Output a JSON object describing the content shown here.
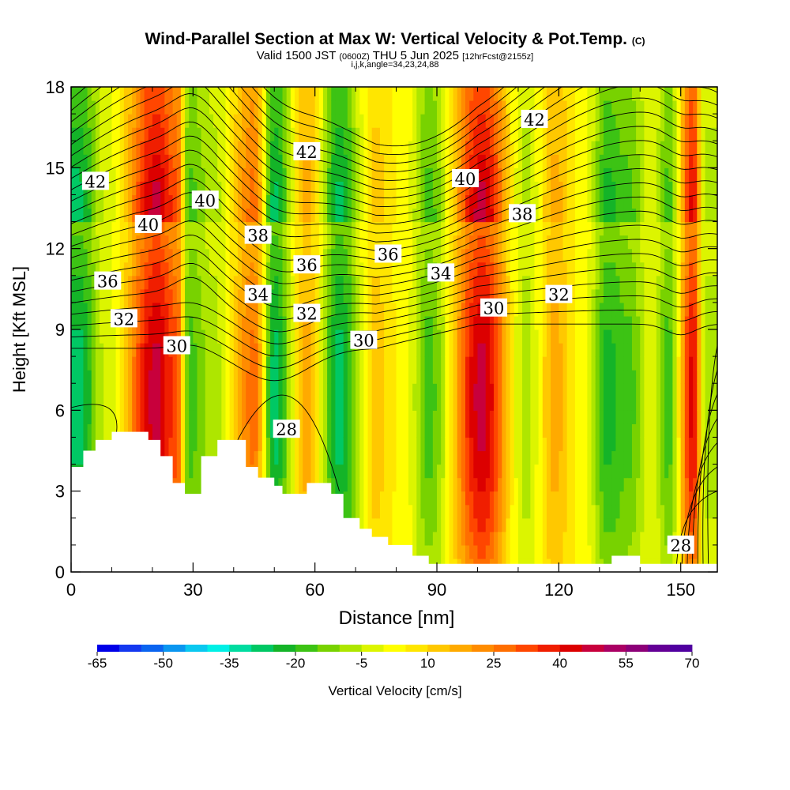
{
  "header": {
    "title": "Wind-Parallel Section at Max W: Vertical Velocity & Pot.Temp.",
    "copyright": "(C)",
    "valid_prefix": "Valid 1500 JST",
    "valid_utc": "(0600Z)",
    "valid_date": "THU 5 Jun 2025",
    "forecast": "[12hrFcst@2155z]",
    "indices": "i,j,k,angle=34,23,24,88"
  },
  "chart_data": {
    "type": "heatmap",
    "xlabel": "Distance [nm]",
    "ylabel": "Height [Kft MSL]",
    "xlim": [
      0,
      159
    ],
    "ylim": [
      0,
      18
    ],
    "xticks": [
      "0",
      "30",
      "60",
      "90",
      "120",
      "150"
    ],
    "yticks": [
      "0",
      "3",
      "6",
      "9",
      "12",
      "15",
      "18"
    ],
    "colorbar": {
      "label": "Vertical Velocity [cm/s]",
      "min": -65,
      "max": 70,
      "step": 5,
      "tick_labels": [
        "-65",
        "-50",
        "-35",
        "-20",
        "-5",
        "10",
        "25",
        "40",
        "55",
        "70"
      ],
      "colors": [
        "#0000e8",
        "#1438f0",
        "#0a64f0",
        "#0a96f0",
        "#0ac8f0",
        "#00f0e6",
        "#00dca0",
        "#00c864",
        "#14b428",
        "#3cc314",
        "#78d200",
        "#aee600",
        "#dcf500",
        "#ffff00",
        "#ffe600",
        "#ffc800",
        "#ffaa00",
        "#ff8c00",
        "#ff6e00",
        "#ff4600",
        "#f01e00",
        "#dc0000",
        "#c8003c",
        "#aa0064",
        "#8c0078",
        "#640096",
        "#5000a0"
      ]
    },
    "velocity_columns": [
      {
        "x": 2,
        "w": -30
      },
      {
        "x": 9,
        "w": -5
      },
      {
        "x": 21,
        "w": 45
      },
      {
        "x": 26,
        "w": 30
      },
      {
        "x": 29,
        "w": -20
      },
      {
        "x": 35,
        "w": -10
      },
      {
        "x": 45,
        "w": 25
      },
      {
        "x": 50,
        "w": -30
      },
      {
        "x": 58,
        "w": 15
      },
      {
        "x": 66,
        "w": -30
      },
      {
        "x": 75,
        "w": 10
      },
      {
        "x": 82,
        "w": 0
      },
      {
        "x": 88,
        "w": -20
      },
      {
        "x": 101,
        "w": 45
      },
      {
        "x": 112,
        "w": -10
      },
      {
        "x": 119,
        "w": 15
      },
      {
        "x": 126,
        "w": 0
      },
      {
        "x": 132,
        "w": -25
      },
      {
        "x": 137,
        "w": -20
      },
      {
        "x": 143,
        "w": -5
      },
      {
        "x": 147,
        "w": -20
      },
      {
        "x": 153,
        "w": 40
      },
      {
        "x": 156,
        "w": -10
      }
    ],
    "theta_contour_labels": [
      {
        "value": "42",
        "x": 6,
        "y": 14.5
      },
      {
        "value": "42",
        "x": 58,
        "y": 15.6
      },
      {
        "value": "42",
        "x": 114,
        "y": 16.8
      },
      {
        "value": "40",
        "x": 19,
        "y": 12.9
      },
      {
        "value": "40",
        "x": 33,
        "y": 13.8
      },
      {
        "value": "40",
        "x": 97,
        "y": 14.6
      },
      {
        "value": "38",
        "x": 46,
        "y": 12.5
      },
      {
        "value": "38",
        "x": 111,
        "y": 13.3
      },
      {
        "value": "36",
        "x": 9,
        "y": 10.8
      },
      {
        "value": "36",
        "x": 58,
        "y": 11.4
      },
      {
        "value": "36",
        "x": 78,
        "y": 11.8
      },
      {
        "value": "34",
        "x": 46,
        "y": 10.3
      },
      {
        "value": "34",
        "x": 91,
        "y": 11.1
      },
      {
        "value": "32",
        "x": 13,
        "y": 9.4
      },
      {
        "value": "32",
        "x": 58,
        "y": 9.6
      },
      {
        "value": "32",
        "x": 120,
        "y": 10.3
      },
      {
        "value": "30",
        "x": 26,
        "y": 8.4
      },
      {
        "value": "30",
        "x": 72,
        "y": 8.6
      },
      {
        "value": "30",
        "x": 104,
        "y": 9.8
      },
      {
        "value": "28",
        "x": 53,
        "y": 5.3
      },
      {
        "value": "28",
        "x": 150,
        "y": 1.0
      }
    ],
    "terrain": [
      {
        "x": 0,
        "h": 3.9
      },
      {
        "x": 3,
        "h": 4.5
      },
      {
        "x": 6,
        "h": 4.9
      },
      {
        "x": 10,
        "h": 5.2
      },
      {
        "x": 19,
        "h": 4.9
      },
      {
        "x": 22,
        "h": 4.3
      },
      {
        "x": 25,
        "h": 3.3
      },
      {
        "x": 28,
        "h": 2.9
      },
      {
        "x": 32,
        "h": 4.3
      },
      {
        "x": 36,
        "h": 4.9
      },
      {
        "x": 43,
        "h": 3.9
      },
      {
        "x": 46,
        "h": 3.5
      },
      {
        "x": 50,
        "h": 3.2
      },
      {
        "x": 52,
        "h": 2.9
      },
      {
        "x": 58,
        "h": 3.3
      },
      {
        "x": 64,
        "h": 2.9
      },
      {
        "x": 67,
        "h": 2.0
      },
      {
        "x": 71,
        "h": 1.6
      },
      {
        "x": 74,
        "h": 1.3
      },
      {
        "x": 78,
        "h": 1.0
      },
      {
        "x": 84,
        "h": 0.6
      },
      {
        "x": 88,
        "h": 0.3
      },
      {
        "x": 133,
        "h": 0.6
      },
      {
        "x": 140,
        "h": 0.3
      },
      {
        "x": 159,
        "h": 0.3
      }
    ]
  }
}
